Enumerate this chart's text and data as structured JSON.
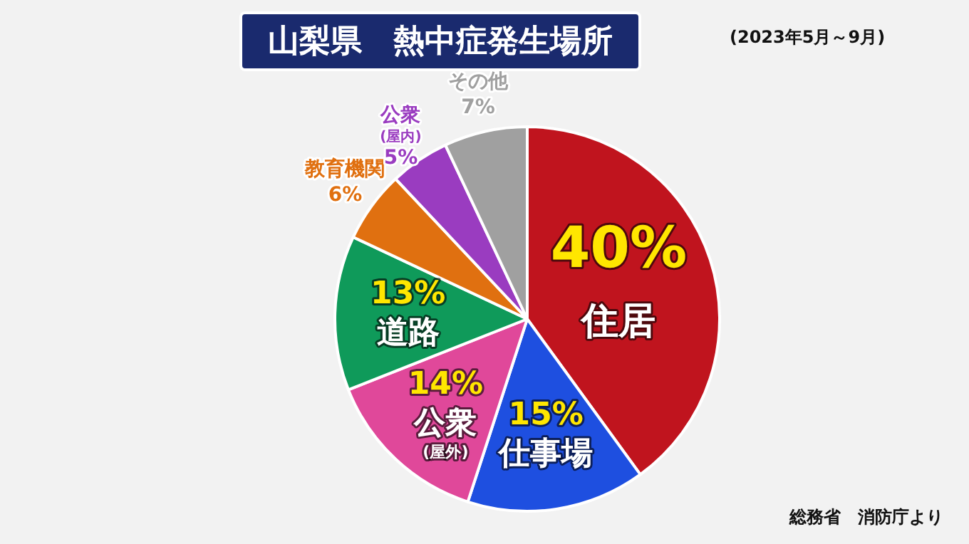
{
  "chart_data": {
    "type": "pie",
    "title": "山梨県　熱中症発生場所",
    "subtitle": "(2023年5月～9月)",
    "categories": [
      "住居",
      "仕事場",
      "公衆(屋外)",
      "道路",
      "教育機関",
      "公衆(屋内)",
      "その他"
    ],
    "values": [
      40,
      15,
      14,
      13,
      6,
      5,
      7
    ],
    "colors": [
      "#c0141e",
      "#1e4fe0",
      "#e0489a",
      "#0f9a5a",
      "#e07010",
      "#9a3cc0",
      "#a0a0a0"
    ],
    "value_labels": [
      "40%",
      "15%",
      "14%",
      "13%",
      "6%",
      "5%",
      "7%"
    ],
    "legend": false,
    "annotations": [
      "総務省　消防庁より"
    ]
  }
}
